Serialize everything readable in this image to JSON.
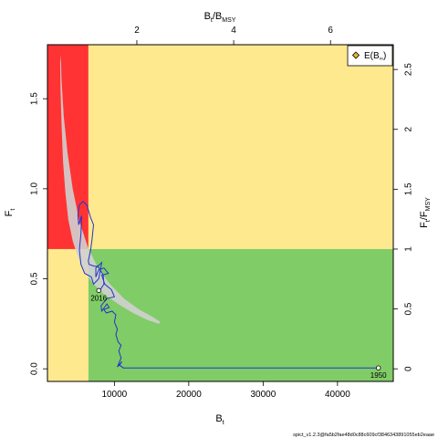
{
  "chart_data": {
    "type": "line",
    "title": "",
    "xlabel": "B",
    "xlabel_sub": "t",
    "ylabel": "F",
    "ylabel_sub": "t",
    "top_label": "B",
    "top_label_sub": "t",
    "top_label_den": "/B",
    "top_label_den_sub": "MSY",
    "right_label": "F",
    "right_label_sub": "t",
    "right_label_den": "/F",
    "right_label_den_sub": "MSY",
    "xlim": [
      1000,
      47500
    ],
    "ylim": [
      -0.07,
      1.8
    ],
    "x_ticks": [
      10000,
      20000,
      30000,
      40000
    ],
    "x_tick_labels": [
      "10000",
      "20000",
      "30000",
      "40000"
    ],
    "y_ticks": [
      0.0,
      0.5,
      1.0,
      1.5
    ],
    "y_tick_labels": [
      "0.0",
      "0.5",
      "1.0",
      "1.5"
    ],
    "top_ticks": [
      2,
      4,
      6
    ],
    "top_tick_labels": [
      "2",
      "4",
      "6"
    ],
    "right_ticks": [
      0,
      0.5,
      1,
      1.5,
      2,
      2.5
    ],
    "right_tick_labels": [
      "0",
      "0.5",
      "1",
      "1.5",
      "2",
      "2.5"
    ],
    "Bmsy": 6510,
    "Fmsy": 0.665,
    "zones": {
      "red": "#ff3333",
      "yellow": "#ffe98f",
      "green": "#80cc66"
    },
    "confidence_region_color": "#d0d0d0",
    "trajectory_color": "#2233cc",
    "legend": {
      "label": "E(B",
      "label_sub": "∞",
      "label_end": ")",
      "marker_color": "#e8b82d",
      "position": "top-right"
    },
    "start": {
      "label": "1950",
      "x": 45500,
      "y": 0.005
    },
    "end": {
      "label": "2016",
      "x": 7900,
      "y": 0.435
    },
    "series": [
      {
        "values": [
          [
            45500,
            0.005
          ],
          [
            38000,
            0.005
          ],
          [
            30000,
            0.005
          ],
          [
            22000,
            0.005
          ],
          [
            16000,
            0.005
          ],
          [
            12500,
            0.005
          ],
          [
            11200,
            0.005
          ],
          [
            10700,
            0.02
          ],
          [
            11000,
            0.04
          ],
          [
            10400,
            0.01
          ],
          [
            10900,
            0.06
          ],
          [
            10600,
            0.1
          ],
          [
            10900,
            0.13
          ],
          [
            10500,
            0.15
          ],
          [
            10200,
            0.19
          ],
          [
            10400,
            0.22
          ],
          [
            10000,
            0.26
          ],
          [
            10200,
            0.3
          ],
          [
            9700,
            0.32
          ],
          [
            8900,
            0.31
          ],
          [
            8600,
            0.33
          ],
          [
            9300,
            0.34
          ],
          [
            9000,
            0.36
          ],
          [
            8300,
            0.32
          ],
          [
            8200,
            0.35
          ],
          [
            9000,
            0.39
          ],
          [
            10000,
            0.4
          ],
          [
            9600,
            0.44
          ],
          [
            8700,
            0.47
          ],
          [
            8300,
            0.52
          ],
          [
            9200,
            0.53
          ],
          [
            8600,
            0.56
          ],
          [
            7900,
            0.55
          ],
          [
            7500,
            0.51
          ],
          [
            7500,
            0.56
          ],
          [
            8300,
            0.59
          ],
          [
            7900,
            0.5
          ],
          [
            7200,
            0.47
          ],
          [
            6900,
            0.51
          ],
          [
            6000,
            0.53
          ],
          [
            5500,
            0.58
          ],
          [
            5300,
            0.66
          ],
          [
            5500,
            0.75
          ],
          [
            5600,
            0.85
          ],
          [
            5200,
            0.8
          ],
          [
            5100,
            0.86
          ],
          [
            5300,
            0.91
          ],
          [
            5800,
            0.93
          ],
          [
            6300,
            0.91
          ],
          [
            6800,
            0.84
          ],
          [
            7200,
            0.8
          ],
          [
            7000,
            0.72
          ],
          [
            6800,
            0.66
          ],
          [
            6500,
            0.6
          ],
          [
            6600,
            0.58
          ],
          [
            7300,
            0.57
          ],
          [
            7800,
            0.57
          ],
          [
            8500,
            0.52
          ],
          [
            8600,
            0.47
          ],
          [
            8100,
            0.44
          ],
          [
            7900,
            0.435
          ]
        ]
      }
    ],
    "confidence_region": [
      [
        2800,
        1.74
      ],
      [
        2900,
        1.6
      ],
      [
        3200,
        1.4
      ],
      [
        3700,
        1.2
      ],
      [
        4400,
        1.0
      ],
      [
        5300,
        0.82
      ],
      [
        6400,
        0.68
      ],
      [
        7800,
        0.56
      ],
      [
        9400,
        0.47
      ],
      [
        11300,
        0.39
      ],
      [
        13300,
        0.33
      ],
      [
        15100,
        0.29
      ],
      [
        16200,
        0.26
      ],
      [
        16000,
        0.25
      ],
      [
        14500,
        0.27
      ],
      [
        12500,
        0.31
      ],
      [
        10500,
        0.36
      ],
      [
        8700,
        0.41
      ],
      [
        7200,
        0.47
      ],
      [
        6000,
        0.54
      ],
      [
        5100,
        0.62
      ],
      [
        4400,
        0.71
      ],
      [
        3800,
        0.83
      ],
      [
        3400,
        0.98
      ],
      [
        3100,
        1.15
      ],
      [
        2900,
        1.35
      ],
      [
        2750,
        1.55
      ],
      [
        2700,
        1.7
      ]
    ],
    "footer": "spict_v1.2.3@fa5b2fae48d0c88c609cf3846343891055eb2eaae"
  }
}
